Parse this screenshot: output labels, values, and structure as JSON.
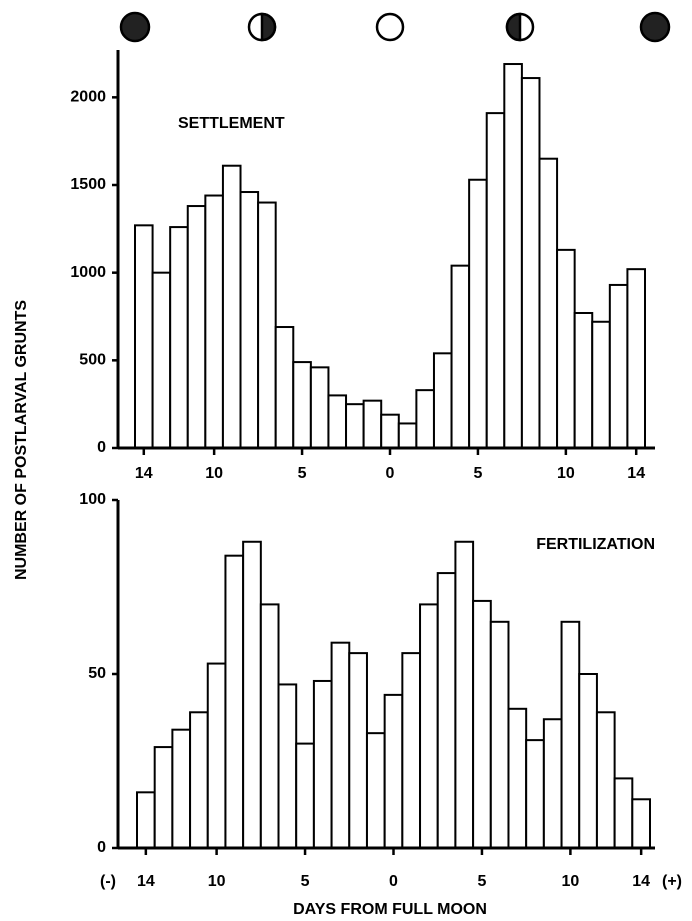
{
  "chart_data": [
    {
      "type": "bar",
      "title": "SETTLEMENT",
      "ylabel": "NUMBER OF POSTLARVAL GRUNTS",
      "x": [
        -14,
        -13,
        -12,
        -11,
        -10,
        -9,
        -8,
        -7,
        -6,
        -5,
        -4,
        -3,
        -2,
        -1,
        0,
        1,
        2,
        3,
        4,
        5,
        6,
        7,
        8,
        9,
        10,
        11,
        12,
        13,
        14
      ],
      "values": [
        1270,
        1000,
        1260,
        1380,
        1440,
        1610,
        1460,
        1400,
        690,
        490,
        460,
        300,
        250,
        270,
        190,
        140,
        330,
        540,
        1040,
        1530,
        1910,
        2190,
        2110,
        1650,
        1130,
        770,
        720,
        930,
        1020
      ],
      "color": "#ffffff",
      "xlim": [
        -14.5,
        14.5
      ],
      "xticks": [
        {
          "value": -14,
          "label": "14"
        },
        {
          "value": -10,
          "label": "10"
        },
        {
          "value": -5,
          "label": "5"
        },
        0,
        5,
        10,
        14
      ],
      "ylim": [
        0,
        2270
      ],
      "yticks": [
        0,
        500,
        1000,
        1500,
        2000
      ]
    },
    {
      "type": "bar",
      "title": "FERTILIZATION",
      "xlabel": "DAYS FROM FULL MOON",
      "annotations": [
        "(-)",
        "(+)"
      ],
      "x": [
        -14,
        -13,
        -12,
        -11,
        -10,
        -9,
        -8,
        -7,
        -6,
        -5,
        -4,
        -3,
        -2,
        -1,
        0,
        1,
        2,
        3,
        4,
        5,
        6,
        7,
        8,
        9,
        10,
        11,
        12,
        13,
        14
      ],
      "values": [
        16,
        29,
        34,
        39,
        53,
        84,
        88,
        70,
        47,
        30,
        48,
        59,
        56,
        33,
        44,
        56,
        70,
        79,
        88,
        71,
        65,
        40,
        31,
        37,
        65,
        50,
        39,
        20,
        14
      ],
      "color": "#ffffff",
      "xlim": [
        -14.5,
        14.5
      ],
      "xticks": [
        {
          "value": -14,
          "label": "14"
        },
        {
          "value": -10,
          "label": "10"
        },
        {
          "value": -5,
          "label": "5"
        },
        0,
        5,
        10,
        14
      ],
      "ylim": [
        0,
        100
      ],
      "yticks": [
        0,
        50,
        100
      ]
    }
  ]
}
